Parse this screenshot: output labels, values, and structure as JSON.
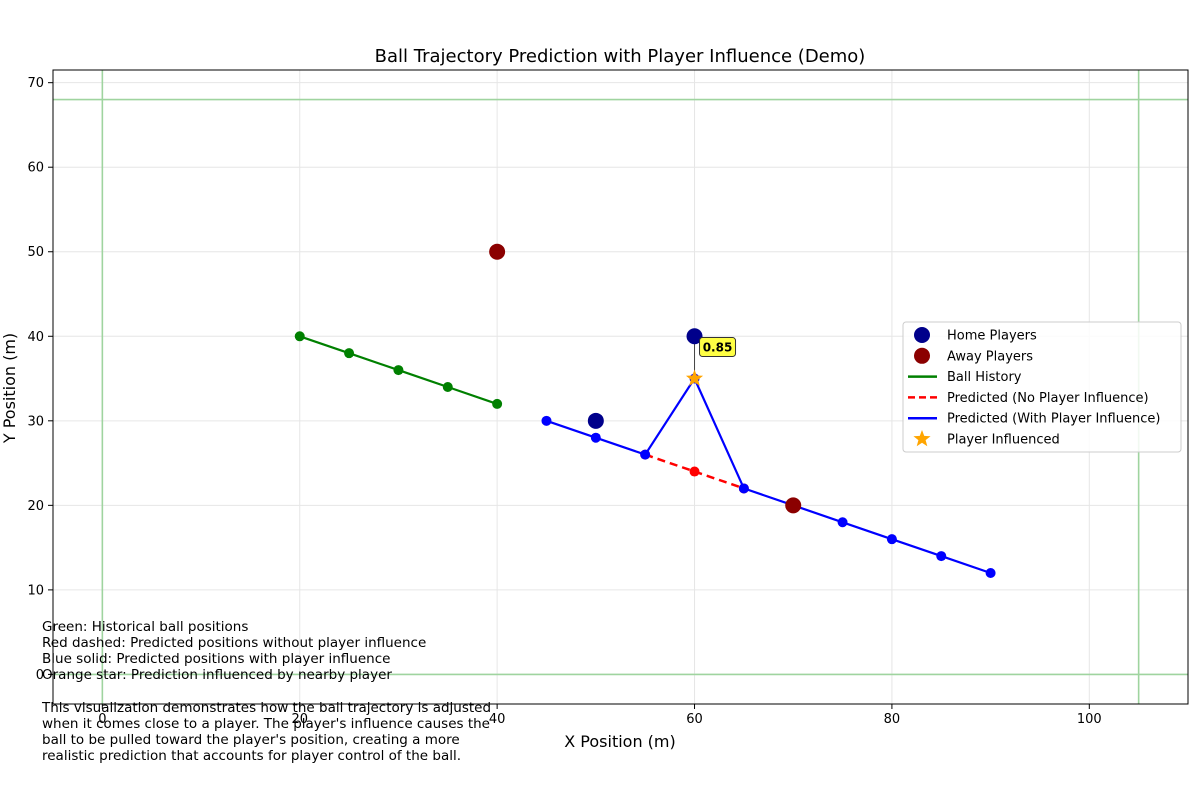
{
  "chart_data": {
    "type": "scatter",
    "title": "Ball Trajectory Prediction with Player Influence (Demo)",
    "xlabel": "X Position (m)",
    "ylabel": "Y Position (m)",
    "xlim": [
      -5,
      110
    ],
    "ylim": [
      -3.5,
      71.5
    ],
    "xticks": [
      0,
      20,
      40,
      60,
      80,
      100
    ],
    "yticks": [
      0,
      10,
      20,
      30,
      40,
      50,
      60,
      70
    ],
    "grid": true,
    "legend_position": "center-right",
    "field_lines": {
      "x": [
        0,
        105
      ],
      "y": [
        0,
        68
      ],
      "color": "#9fd49f"
    },
    "colors": {
      "home": "#00008b",
      "away": "#8b0000",
      "history": "#008000",
      "no_influence": "#ff0000",
      "with_influence": "#0000ff",
      "star": "#ffa500",
      "annotation_bg": "#ffff44"
    },
    "home_players": [
      [
        50,
        30
      ],
      [
        60,
        40
      ]
    ],
    "away_players": [
      [
        40,
        50
      ],
      [
        70,
        20
      ]
    ],
    "ball_history": [
      [
        20,
        40
      ],
      [
        25,
        38
      ],
      [
        30,
        36
      ],
      [
        35,
        34
      ],
      [
        40,
        32
      ]
    ],
    "predicted_no_influence": [
      [
        55,
        26
      ],
      [
        60,
        24
      ],
      [
        65,
        22
      ]
    ],
    "predicted_with_influence": [
      [
        45,
        30
      ],
      [
        50,
        28
      ],
      [
        55,
        26
      ],
      [
        60,
        35
      ],
      [
        65,
        22
      ],
      [
        70,
        20
      ],
      [
        75,
        18
      ],
      [
        80,
        16
      ],
      [
        85,
        14
      ],
      [
        90,
        12
      ]
    ],
    "player_influenced": [
      [
        60,
        35
      ]
    ],
    "influence_annotation": {
      "text": "0.85",
      "x": 60,
      "y": 35,
      "player": [
        60,
        40
      ]
    },
    "legend": [
      {
        "label": "Home Players",
        "kind": "marker",
        "key": "home"
      },
      {
        "label": "Away Players",
        "kind": "marker",
        "key": "away"
      },
      {
        "label": "Ball History",
        "kind": "line",
        "key": "history"
      },
      {
        "label": "Predicted (No Player Influence)",
        "kind": "dashed",
        "key": "no_influence"
      },
      {
        "label": "Predicted (With Player Influence)",
        "kind": "line",
        "key": "with_influence"
      },
      {
        "label": "Player Influenced",
        "kind": "star",
        "key": "star"
      }
    ]
  },
  "notes": {
    "key_lines": "Green: Historical ball positions\nRed dashed: Predicted positions without player influence\nBlue solid: Predicted positions with player influence\nOrange star: Prediction influenced by nearby player",
    "description": "This visualization demonstrates how the ball trajectory is adjusted\nwhen it comes close to a player. The player's influence causes the\nball to be pulled toward the player's position, creating a more\nrealistic prediction that accounts for player control of the ball."
  }
}
